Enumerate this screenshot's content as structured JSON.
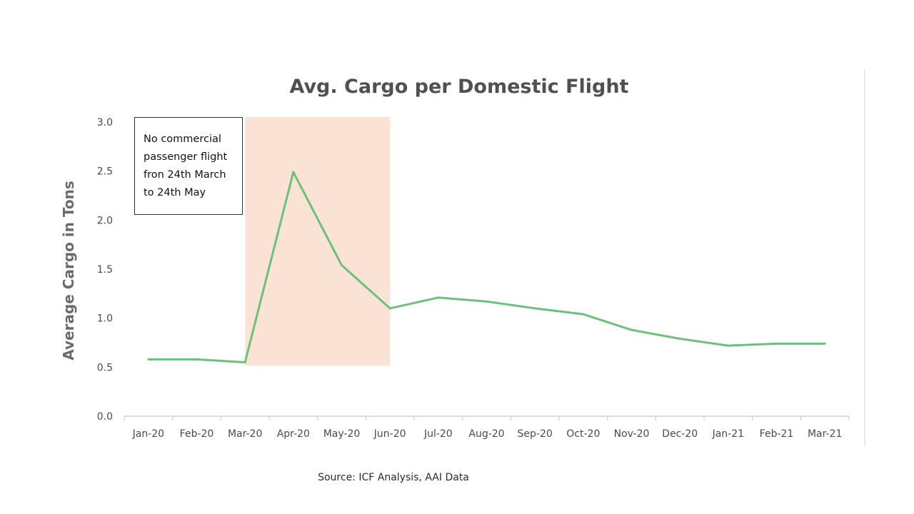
{
  "chart_data": {
    "type": "line",
    "title": "Avg. Cargo per Domestic Flight",
    "xlabel": "",
    "ylabel": "Average Cargo in Tons",
    "ylim": [
      0,
      3
    ],
    "yticks": [
      "0.0",
      "0.5",
      "1.0",
      "1.5",
      "2.0",
      "2.5",
      "3.0"
    ],
    "categories": [
      "Jan-20",
      "Feb-20",
      "Mar-20",
      "Apr-20",
      "May-20",
      "Jun-20",
      "Jul-20",
      "Aug-20",
      "Sep-20",
      "Oct-20",
      "Nov-20",
      "Dec-20",
      "Jan-21",
      "Feb-21",
      "Mar-21"
    ],
    "series": [
      {
        "values": [
          0.58,
          0.58,
          0.55,
          2.49,
          1.54,
          1.1,
          1.21,
          1.17,
          1.1,
          1.04,
          0.88,
          0.79,
          0.72,
          0.74,
          0.74
        ]
      }
    ],
    "highlight_region": {
      "from": "Mar-20",
      "to": "Jun-20",
      "top": 3.0,
      "bottom": 0.55
    },
    "annotation": [
      "No commercial",
      "passenger flight",
      "fron 24th March",
      "to 24th May"
    ],
    "colors": {
      "line": "#6cc07c",
      "highlight": "#fae3d4",
      "axis": "#d0d0d0"
    },
    "grid": false,
    "legend": "none"
  },
  "source": "Source: ICF Analysis, AAI Data"
}
